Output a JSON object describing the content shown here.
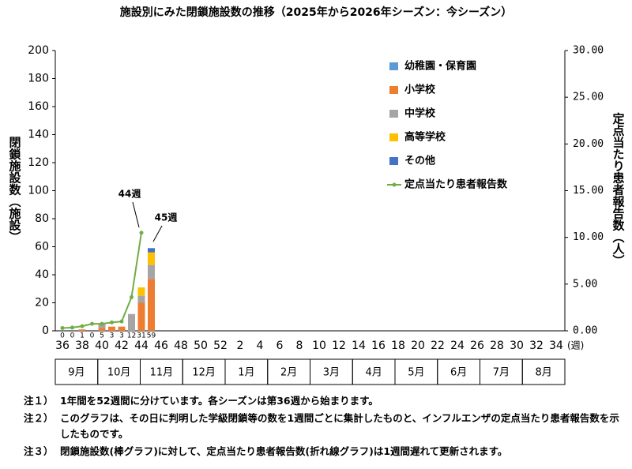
{
  "chart_data": {
    "type": "bar",
    "title": "施設別にみた閉鎖施設数の推移（2025年から2026年シーズン：今シーズン）",
    "y_label": "閉鎖施設数（施設）",
    "y2_label": "定点当たり患者報告数（人）",
    "x_unit": "(週)",
    "categories": [
      "36",
      null,
      "38",
      null,
      "40",
      null,
      "42",
      null,
      "44",
      null,
      "46",
      null,
      "48",
      null,
      "50",
      null,
      "52",
      null,
      "2",
      null,
      "4",
      null,
      "6",
      null,
      "8",
      null,
      "10",
      null,
      "12",
      null,
      "14",
      null,
      "16",
      null,
      "18",
      null,
      "20",
      null,
      "22",
      null,
      "24",
      null,
      "26",
      null,
      "28",
      null,
      "30",
      null,
      "32",
      null,
      "34",
      null
    ],
    "months": [
      "9月",
      "10月",
      "11月",
      "12月",
      "1月",
      "2月",
      "3月",
      "4月",
      "5月",
      "6月",
      "7月",
      "8月"
    ],
    "ylim": [
      0,
      200
    ],
    "yticks": [
      0,
      20,
      40,
      60,
      80,
      100,
      120,
      140,
      160,
      180,
      200
    ],
    "y2lim": [
      0,
      30
    ],
    "y2ticks": [
      {
        "value": 0,
        "label": "0.00"
      },
      {
        "value": 5,
        "label": "5.00"
      },
      {
        "value": 10,
        "label": "10.00"
      },
      {
        "value": 15,
        "label": "15.00"
      },
      {
        "value": 20,
        "label": "20.00"
      },
      {
        "value": 25,
        "label": "25.00"
      },
      {
        "value": 30,
        "label": "30.00"
      }
    ],
    "series": [
      {
        "name": "幼稚園・保育園",
        "color": "#5b9bd5",
        "values": [
          0,
          0,
          0,
          0,
          0,
          0,
          0,
          0,
          0,
          0,
          null,
          null,
          null,
          null,
          null,
          null,
          null,
          null,
          null,
          null,
          null,
          null,
          null,
          null,
          null,
          null,
          null,
          null,
          null,
          null,
          null,
          null,
          null,
          null,
          null,
          null,
          null,
          null,
          null,
          null,
          null,
          null,
          null,
          null,
          null,
          null,
          null,
          null,
          null,
          null,
          null,
          null
        ]
      },
      {
        "name": "小学校",
        "color": "#ed7d31",
        "values": [
          0,
          0,
          1,
          0,
          2,
          3,
          3,
          0,
          20,
          37,
          null,
          null,
          null,
          null,
          null,
          null,
          null,
          null,
          null,
          null,
          null,
          null,
          null,
          null,
          null,
          null,
          null,
          null,
          null,
          null,
          null,
          null,
          null,
          null,
          null,
          null,
          null,
          null,
          null,
          null,
          null,
          null,
          null,
          null,
          null,
          null,
          null,
          null,
          null,
          null,
          null,
          null
        ]
      },
      {
        "name": "中学校",
        "color": "#a5a5a5",
        "values": [
          0,
          0,
          0,
          0,
          3,
          0,
          0,
          12,
          5,
          10,
          null,
          null,
          null,
          null,
          null,
          null,
          null,
          null,
          null,
          null,
          null,
          null,
          null,
          null,
          null,
          null,
          null,
          null,
          null,
          null,
          null,
          null,
          null,
          null,
          null,
          null,
          null,
          null,
          null,
          null,
          null,
          null,
          null,
          null,
          null,
          null,
          null,
          null,
          null,
          null,
          null,
          null
        ]
      },
      {
        "name": "高等学校",
        "color": "#ffc000",
        "values": [
          0,
          0,
          0,
          0,
          0,
          0,
          0,
          0,
          6,
          9,
          null,
          null,
          null,
          null,
          null,
          null,
          null,
          null,
          null,
          null,
          null,
          null,
          null,
          null,
          null,
          null,
          null,
          null,
          null,
          null,
          null,
          null,
          null,
          null,
          null,
          null,
          null,
          null,
          null,
          null,
          null,
          null,
          null,
          null,
          null,
          null,
          null,
          null,
          null,
          null,
          null,
          null
        ]
      },
      {
        "name": "その他",
        "color": "#4472c4",
        "values": [
          0,
          0,
          0,
          0,
          0,
          0,
          0,
          0,
          0,
          3,
          null,
          null,
          null,
          null,
          null,
          null,
          null,
          null,
          null,
          null,
          null,
          null,
          null,
          null,
          null,
          null,
          null,
          null,
          null,
          null,
          null,
          null,
          null,
          null,
          null,
          null,
          null,
          null,
          null,
          null,
          null,
          null,
          null,
          null,
          null,
          null,
          null,
          null,
          null,
          null,
          null,
          null
        ]
      },
      {
        "name": "定点当たり患者報告数",
        "color": "#70ad47",
        "axis": "y2",
        "type": "line",
        "values": [
          0.3,
          0.35,
          0.5,
          0.75,
          0.75,
          0.9,
          1.0,
          3.6,
          10.5,
          null,
          null,
          null,
          null,
          null,
          null,
          null,
          null,
          null,
          null,
          null,
          null,
          null,
          null,
          null,
          null,
          null,
          null,
          null,
          null,
          null,
          null,
          null,
          null,
          null,
          null,
          null,
          null,
          null,
          null,
          null,
          null,
          null,
          null,
          null,
          null,
          null,
          null,
          null,
          null,
          null,
          null,
          null
        ]
      }
    ],
    "totals": [
      0,
      0,
      1,
      0,
      5,
      3,
      3,
      12,
      31,
      59,
      null,
      null,
      null,
      null,
      null,
      null,
      null,
      null,
      null,
      null,
      null,
      null,
      null,
      null,
      null,
      null,
      null,
      null,
      null,
      null,
      null,
      null,
      null,
      null,
      null,
      null,
      null,
      null,
      null,
      null,
      null,
      null,
      null,
      null,
      null,
      null,
      null,
      null,
      null,
      null,
      null,
      null
    ],
    "annotations": [
      "44週",
      "45週"
    ],
    "notes": [
      {
        "label": "注１）",
        "text": "1年間を52週間に分けています。各シーズンは第36週から始まります。"
      },
      {
        "label": "注２）",
        "text": "このグラフは、その日に判明した学級閉鎖等の数を1週間ごとに集計したものと、インフルエンザの定点当たり患者報告数を示したものです。"
      },
      {
        "label": "注３）",
        "text": "閉鎖施設数(棒グラフ)に対して、定点当たり患者報告数(折れ線グラフ)は1週間遅れて更新されます。"
      }
    ]
  }
}
